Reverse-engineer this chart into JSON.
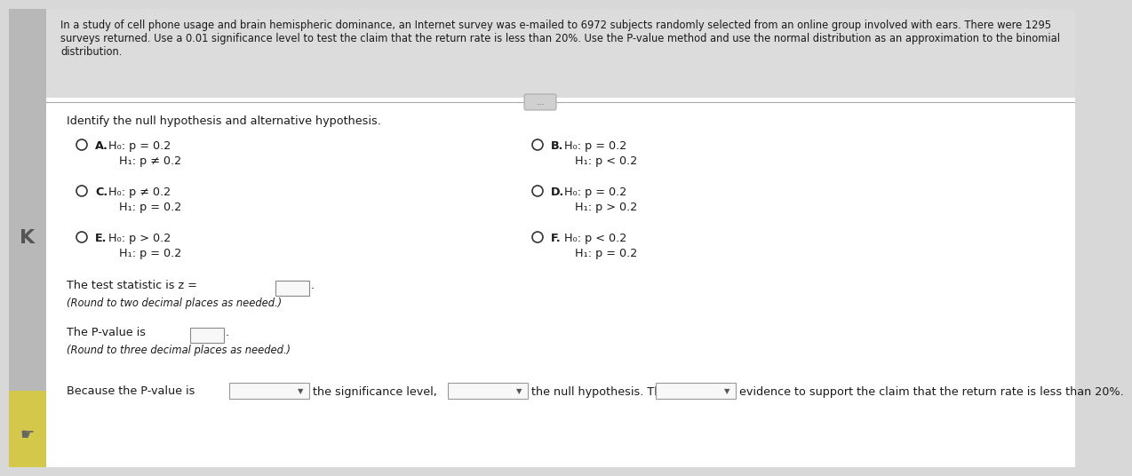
{
  "bg_color": "#d8d8d8",
  "white_panel_color": "#f0f0f0",
  "content_bg": "#ffffff",
  "header_text_line1": "In a study of cell phone usage and brain hemispheric dominance, an Internet survey was e-mailed to 6972 subjects randomly selected from an online group involved with ears. There were 1295",
  "header_text_line2": "surveys returned. Use a 0.01 significance level to test the claim that the return rate is less than 20%. Use the P-value method and use the normal distribution as an approximation to the binomial",
  "header_text_line3": "distribution.",
  "identify_text": "Identify the null hypothesis and alternative hypothesis.",
  "options": [
    {
      "label": "A.",
      "line1": "H₀: p = 0.2",
      "line2": "H₁: p ≠ 0.2"
    },
    {
      "label": "B.",
      "line1": "H₀: p = 0.2",
      "line2": "H₁: p < 0.2"
    },
    {
      "label": "C.",
      "line1": "H₀: p ≠ 0.2",
      "line2": "H₁: p = 0.2"
    },
    {
      "label": "D.",
      "line1": "H₀: p = 0.2",
      "line2": "H₁: p > 0.2"
    },
    {
      "label": "E.",
      "line1": "H₀: p > 0.2",
      "line2": "H₁: p = 0.2"
    },
    {
      "label": "F.",
      "line1": "H₀: p < 0.2",
      "line2": "H₁: p = 0.2"
    }
  ],
  "test_stat_text": "The test statistic is z =",
  "round_two": "(Round to two decimal places as needed.)",
  "pvalue_text": "The P-value is",
  "round_three": "(Round to three decimal places as needed.)",
  "because_text": "Because the P-value is",
  "significance_text": "the significance level,",
  "null_text": "the null hypothesis. There is",
  "evidence_text": "evidence to support the claim that the return rate is less than 20%.",
  "arrow_symbol": "▼",
  "text_color": "#1a1a1a",
  "radio_color": "#333333",
  "font_size_header": 8.3,
  "font_size_body": 9.2,
  "font_size_options": 9.2,
  "left_strip_color": "#b8b8b8",
  "yellow_strip_color": "#d4c84a",
  "separator_color": "#aaaaaa",
  "header_bg_color": "#dcdcdc",
  "input_box_color": "#f8f8f8",
  "input_box_border": "#888888",
  "dropdown_border": "#999999"
}
